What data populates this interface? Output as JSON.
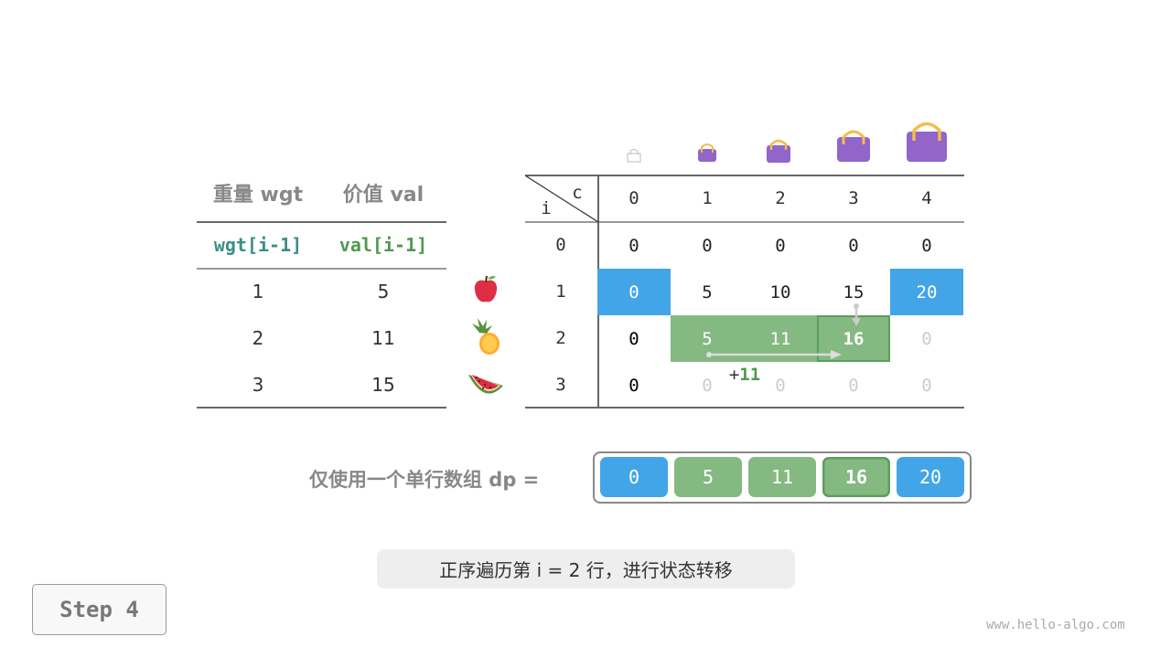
{
  "items_table": {
    "headers": [
      "重量 wgt",
      "价值 val"
    ],
    "subheaders": [
      "wgt[i-1]",
      "val[i-1]"
    ],
    "rows": [
      [
        "1",
        "5"
      ],
      [
        "2",
        "11"
      ],
      [
        "3",
        "15"
      ]
    ],
    "item_icons": [
      "apple-icon",
      "pineapple-icon",
      "watermelon-icon"
    ]
  },
  "dp_table": {
    "corner_i": "i",
    "corner_c": "c",
    "col_headers": [
      "0",
      "1",
      "2",
      "3",
      "4"
    ],
    "row_headers": [
      "0",
      "1",
      "2",
      "3"
    ],
    "cells": [
      [
        "0",
        "0",
        "0",
        "0",
        "0"
      ],
      [
        "0",
        "5",
        "10",
        "15",
        "20"
      ],
      [
        "0",
        "5",
        "11",
        "16",
        "0"
      ],
      [
        "0",
        "0",
        "0",
        "0",
        "0"
      ]
    ],
    "states": [
      [
        "n",
        "n",
        "n",
        "n",
        "n"
      ],
      [
        "blue",
        "n",
        "n",
        "n",
        "blue"
      ],
      [
        "n",
        "green",
        "green",
        "current",
        "faded"
      ],
      [
        "n",
        "faded",
        "faded",
        "faded",
        "faded"
      ]
    ],
    "annotation": "+11",
    "annotation_plus": "+",
    "annotation_value": "11"
  },
  "dp_array": {
    "label": "仅使用一个单行数组 dp =",
    "values": [
      "0",
      "5",
      "11",
      "16",
      "20"
    ],
    "states": [
      "blue",
      "green",
      "green",
      "current",
      "blue"
    ]
  },
  "caption": "正序遍历第 i = 2 行，进行状态转移",
  "step_button": "Step 4",
  "watermark": "www.hello-algo.com",
  "colors": {
    "blue": "#42a5e8",
    "green": "#84b982",
    "current_border": "#5e9e5c",
    "teal": "#3a8f85",
    "green_text": "#4f9a4f",
    "bag": "#9165c9",
    "handle": "#f5bc4a"
  }
}
